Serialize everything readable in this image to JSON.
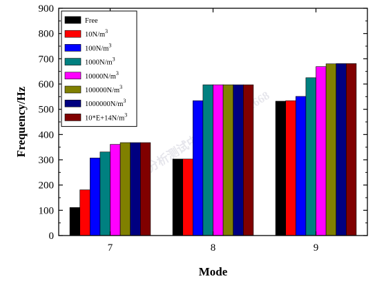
{
  "chart_data": {
    "type": "bar",
    "xlabel": "Mode",
    "ylabel": "Frequency/Hz",
    "categories": [
      "7",
      "8",
      "9"
    ],
    "ylim": [
      0,
      900
    ],
    "yticks": [
      0,
      100,
      200,
      300,
      400,
      500,
      600,
      700,
      800,
      900
    ],
    "grid": false,
    "legend_position": "top-left",
    "series": [
      {
        "name": "Free",
        "color": "#000000",
        "values": [
          111,
          303,
          532
        ]
      },
      {
        "name": "10N/m",
        "name_sup": "3",
        "color": "#ff0000",
        "values": [
          181,
          303,
          534
        ]
      },
      {
        "name": "100N/m",
        "name_sup": "3",
        "color": "#0000ff",
        "values": [
          307,
          534,
          551
        ]
      },
      {
        "name": "1000N/m",
        "name_sup": "3",
        "color": "#008080",
        "values": [
          331,
          597,
          625
        ]
      },
      {
        "name": "10000N/m",
        "name_sup": "3",
        "color": "#ff00ff",
        "values": [
          361,
          597,
          669
        ]
      },
      {
        "name": "100000N/m",
        "name_sup": "3",
        "color": "#808000",
        "values": [
          368,
          597,
          680
        ]
      },
      {
        "name": "1000000N/m",
        "name_sup": "3",
        "color": "#000080",
        "values": [
          368,
          597,
          681
        ]
      },
      {
        "name": "10*E+14N/m",
        "name_sup": "3",
        "color": "#800000",
        "values": [
          368,
          597,
          681
        ]
      }
    ]
  },
  "watermark": "材料分析测试中心 020-66221668"
}
